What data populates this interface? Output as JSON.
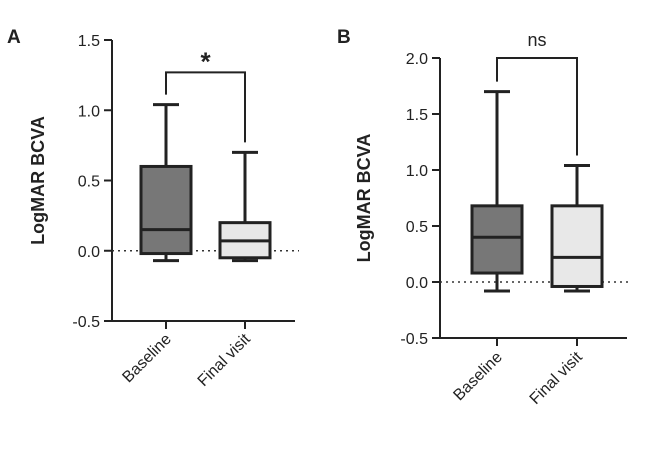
{
  "chart_data": [
    {
      "panel": "A",
      "type": "box",
      "title": "",
      "ylabel": "LogMAR BCVA",
      "xlabel": "",
      "ylim": [
        -0.5,
        1.5
      ],
      "yticks": [
        "-0.5",
        "0.0",
        "0.5",
        "1.0",
        "1.5"
      ],
      "ytick_values": [
        -0.5,
        0.0,
        0.5,
        1.0,
        1.5
      ],
      "reference_line": 0.0,
      "categories": [
        "Baseline",
        "Final visit"
      ],
      "boxes": [
        {
          "category": "Baseline",
          "min": -0.07,
          "q1": -0.02,
          "median": 0.15,
          "q3": 0.6,
          "max": 1.04,
          "color": "#777777"
        },
        {
          "category": "Final visit",
          "min": -0.07,
          "q1": -0.05,
          "median": 0.07,
          "q3": 0.2,
          "max": 0.7,
          "color": "#e8e8e8"
        }
      ],
      "significance": {
        "label": "*",
        "bracket_y": 1.27
      }
    },
    {
      "panel": "B",
      "type": "box",
      "title": "",
      "ylabel": "LogMAR BCVA",
      "xlabel": "",
      "ylim": [
        -0.5,
        2.0
      ],
      "yticks": [
        "-0.5",
        "0.0",
        "0.5",
        "1.0",
        "1.5",
        "2.0"
      ],
      "ytick_values": [
        -0.5,
        0.0,
        0.5,
        1.0,
        1.5,
        2.0
      ],
      "reference_line": 0.0,
      "categories": [
        "Baseline",
        "Final visit"
      ],
      "boxes": [
        {
          "category": "Baseline",
          "min": -0.08,
          "q1": 0.08,
          "median": 0.4,
          "q3": 0.68,
          "max": 1.7,
          "color": "#777777"
        },
        {
          "category": "Final visit",
          "min": -0.08,
          "q1": -0.04,
          "median": 0.22,
          "q3": 0.68,
          "max": 1.04,
          "color": "#e8e8e8"
        }
      ],
      "significance": {
        "label": "ns",
        "bracket_y": 2.0
      }
    }
  ]
}
